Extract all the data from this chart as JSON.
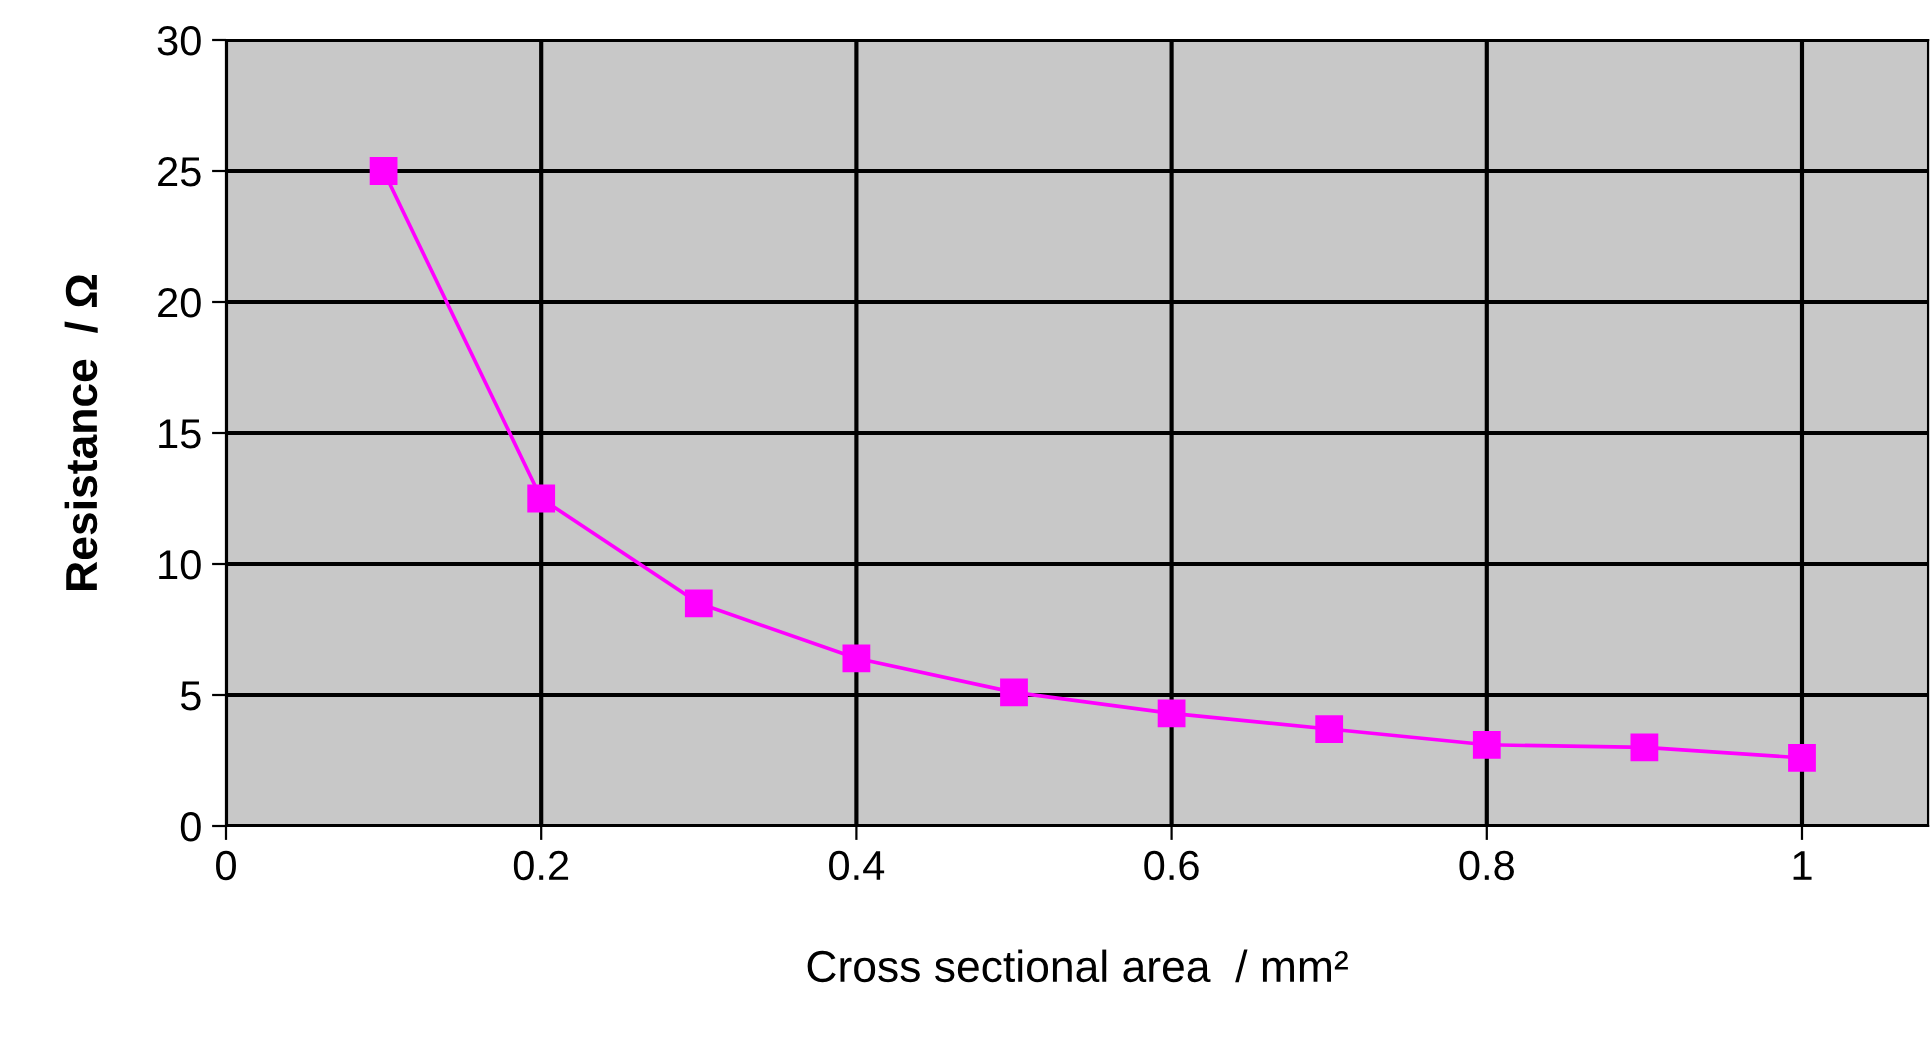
{
  "chart_data": {
    "type": "line",
    "xlabel": "Cross sectional area  / mm²",
    "ylabel": "Resistance  / Ω",
    "x": [
      0.1,
      0.2,
      0.3,
      0.4,
      0.5,
      0.6,
      0.7,
      0.8,
      0.9,
      1.0
    ],
    "series": [
      {
        "color": "#ff00ff",
        "values": [
          25,
          12.5,
          8.5,
          6.4,
          5.1,
          4.3,
          3.7,
          3.1,
          3.0,
          2.6
        ]
      }
    ],
    "xlim": [
      0,
      1.08
    ],
    "xticks": [
      0,
      0.2,
      0.4,
      0.6,
      0.8,
      1
    ],
    "ylim": [
      0,
      30
    ],
    "yticks": [
      0,
      5,
      10,
      15,
      20,
      25,
      30
    ],
    "grid": true,
    "marker": "square",
    "line_style": "solid",
    "legend": false
  }
}
